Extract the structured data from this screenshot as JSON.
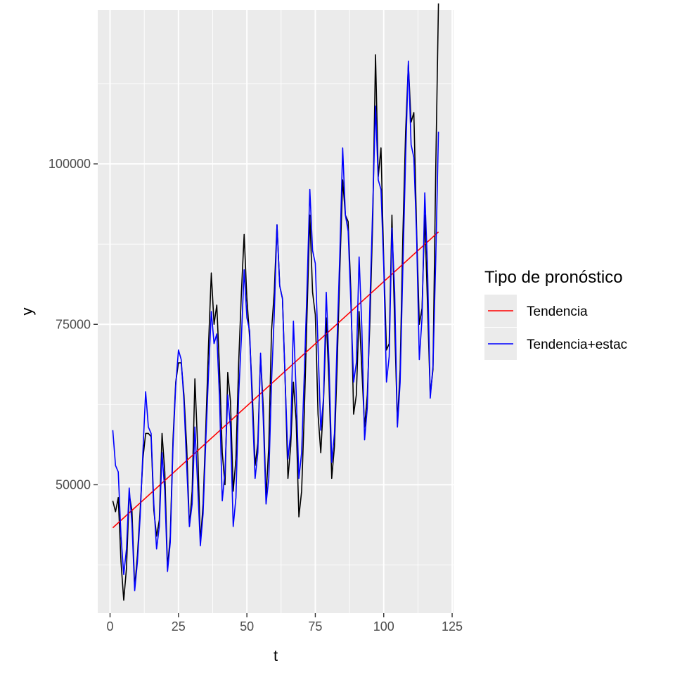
{
  "chart_data": {
    "type": "line",
    "xlabel": "t",
    "ylabel": "y",
    "xlim": [
      -4.5,
      125.5
    ],
    "ylim": [
      30000,
      124000
    ],
    "x_ticks": [
      0,
      25,
      50,
      75,
      100,
      125
    ],
    "y_ticks": [
      50000,
      75000,
      100000
    ],
    "x_tick_labels": [
      "0",
      "25",
      "50",
      "75",
      "100",
      "125"
    ],
    "y_tick_labels": [
      "50000",
      "75000",
      "100000"
    ],
    "grid": true,
    "panel_background": "#ebebeb",
    "legend": {
      "title": "Tipo de pronóstico",
      "position": "right",
      "entries": [
        {
          "label": "Tendencia",
          "color": "#ff0000"
        },
        {
          "label": "Tendencia+estac",
          "color": "#0000ff"
        }
      ]
    },
    "series": [
      {
        "color": "#000000",
        "x": [
          1,
          2,
          3,
          4,
          5,
          6,
          7,
          8,
          9,
          10,
          11,
          12,
          13,
          14,
          15,
          16,
          17,
          18,
          19,
          20,
          21,
          22,
          23,
          24,
          25,
          26,
          27,
          28,
          29,
          30,
          31,
          32,
          33,
          34,
          35,
          36,
          37,
          38,
          39,
          40,
          41,
          42,
          43,
          44,
          45,
          46,
          47,
          48,
          49,
          50,
          51,
          52,
          53,
          54,
          55,
          56,
          57,
          58,
          59,
          60,
          61,
          62,
          63,
          64,
          65,
          66,
          67,
          68,
          69,
          70,
          71,
          72,
          73,
          74,
          75,
          76,
          77,
          78,
          79,
          80,
          81,
          82,
          83,
          84,
          85,
          86,
          87,
          88,
          89,
          90,
          91,
          92,
          93,
          94,
          95,
          96,
          97,
          98,
          99,
          100,
          101,
          102,
          103,
          104,
          105,
          106,
          107,
          108,
          109,
          110,
          111,
          112,
          113,
          114,
          115,
          116,
          117,
          118,
          119,
          120
        ],
        "values": [
          47500,
          45800,
          48000,
          38000,
          32000,
          37000,
          48500,
          46000,
          34000,
          39000,
          46000,
          54000,
          58000,
          58000,
          57500,
          46000,
          42000,
          44500,
          58000,
          52000,
          37000,
          42000,
          57000,
          66000,
          69000,
          69000,
          64000,
          56000,
          43500,
          49000,
          66500,
          56000,
          41000,
          47000,
          59000,
          72000,
          83000,
          75000,
          78000,
          68000,
          55000,
          50000,
          67500,
          63000,
          49000,
          54000,
          69000,
          80000,
          89000,
          79000,
          73000,
          64000,
          53000,
          56500,
          70000,
          62000,
          48000,
          56000,
          74000,
          80000,
          90500,
          81000,
          79000,
          66000,
          51000,
          56000,
          66000,
          60000,
          45000,
          49000,
          61500,
          77000,
          92000,
          80000,
          76500,
          61000,
          55000,
          63000,
          76000,
          66000,
          51000,
          56000,
          69000,
          84000,
          97500,
          92000,
          91000,
          80000,
          61000,
          64000,
          77000,
          68000,
          59000,
          64000,
          76000,
          91500,
          117000,
          98000,
          102500,
          85000,
          71000,
          72000,
          92000,
          75000,
          59500,
          68000,
          89000,
          105000,
          115500,
          106500,
          108000,
          90000,
          75000,
          77500,
          92000,
          78000,
          64000,
          68000,
          99000,
          125000
        ]
      },
      {
        "name": "Tendencia",
        "color": "#ff0000",
        "x": [
          1,
          120
        ],
        "values": [
          43300,
          89400
        ]
      },
      {
        "name": "Tendencia+estac",
        "color": "#0000ff",
        "x": [
          1,
          2,
          3,
          4,
          5,
          6,
          7,
          8,
          9,
          10,
          11,
          12,
          13,
          14,
          15,
          16,
          17,
          18,
          19,
          20,
          21,
          22,
          23,
          24,
          25,
          26,
          27,
          28,
          29,
          30,
          31,
          32,
          33,
          34,
          35,
          36,
          37,
          38,
          39,
          40,
          41,
          42,
          43,
          44,
          45,
          46,
          47,
          48,
          49,
          50,
          51,
          52,
          53,
          54,
          55,
          56,
          57,
          58,
          59,
          60,
          61,
          62,
          63,
          64,
          65,
          66,
          67,
          68,
          69,
          70,
          71,
          72,
          73,
          74,
          75,
          76,
          77,
          78,
          79,
          80,
          81,
          82,
          83,
          84,
          85,
          86,
          87,
          88,
          89,
          90,
          91,
          92,
          93,
          94,
          95,
          96,
          97,
          98,
          99,
          100,
          101,
          102,
          103,
          104,
          105,
          106,
          107,
          108,
          109,
          110,
          111,
          112,
          113,
          114,
          115,
          116,
          117,
          118,
          119,
          120
        ],
        "values": [
          58500,
          53000,
          52000,
          42000,
          36000,
          40000,
          49500,
          44000,
          33500,
          38000,
          45000,
          55000,
          64500,
          59000,
          58000,
          47000,
          40000,
          43500,
          55000,
          49000,
          36500,
          41000,
          56000,
          65500,
          71000,
          69500,
          63000,
          53000,
          43500,
          47000,
          59000,
          50000,
          40500,
          45500,
          57000,
          67500,
          77000,
          72000,
          73500,
          63500,
          47500,
          52000,
          64000,
          59000,
          43500,
          48000,
          64000,
          73000,
          83500,
          76000,
          74000,
          62000,
          51000,
          55000,
          70500,
          60000,
          47000,
          51000,
          66000,
          76500,
          90500,
          81000,
          79000,
          66000,
          54000,
          58000,
          75500,
          64500,
          51000,
          55000,
          67500,
          81000,
          96000,
          86500,
          84500,
          71500,
          58500,
          63500,
          80000,
          69000,
          53500,
          58000,
          73000,
          86500,
          102500,
          92000,
          89500,
          78000,
          66000,
          69000,
          85500,
          74500,
          57000,
          62000,
          79000,
          93500,
          109000,
          97500,
          96000,
          84000,
          66000,
          70000,
          90000,
          80000,
          59000,
          66000,
          84000,
          101000,
          116000,
          103000,
          101000,
          89000,
          69500,
          76000,
          95500,
          84000,
          63500,
          68500,
          85000,
          105000
        ]
      }
    ]
  }
}
